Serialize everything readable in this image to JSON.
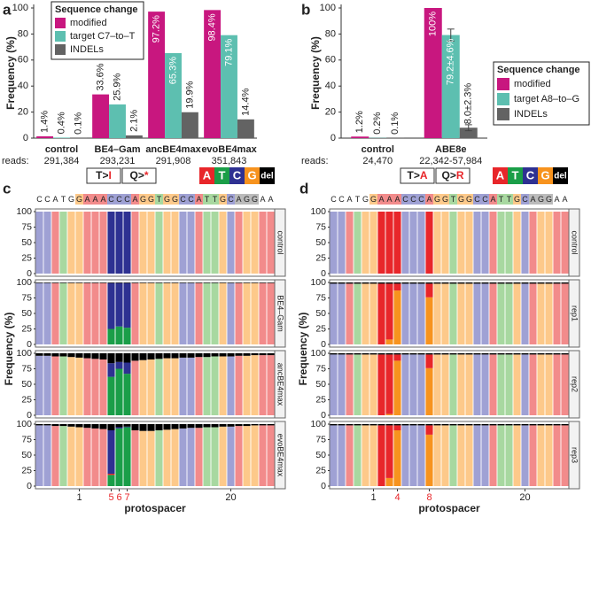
{
  "chart_data": [
    {
      "type": "bar",
      "panel": "a",
      "ylabel": "Frequency (%)",
      "categories": [
        "control",
        "BE4–Gam",
        "ancBE4max",
        "evoBE4max"
      ],
      "reads_label": "reads:",
      "reads": [
        "291,384",
        "293,231",
        "291,908",
        "351,843"
      ],
      "legend_title": "Sequence change",
      "series": [
        {
          "name": "modified",
          "color": "#c8177f",
          "values": [
            1.4,
            33.6,
            97.2,
            98.4
          ],
          "value_labels": [
            "1.4%",
            "33.6%",
            "97.2%",
            "98.4%"
          ]
        },
        {
          "name": "target C7–to–T",
          "color": "#5dbfb0",
          "values": [
            0.4,
            25.9,
            65.3,
            79.1
          ],
          "value_labels": [
            "0.4%",
            "25.9%",
            "65.3%",
            "79.1%"
          ]
        },
        {
          "name": "INDELs",
          "color": "#636363",
          "values": [
            0.1,
            2.1,
            19.9,
            14.4
          ],
          "value_labels": [
            "0.1%",
            "2.1%",
            "19.9%",
            "14.4%"
          ]
        }
      ],
      "ylim": [
        0,
        100
      ],
      "yticks": [
        0,
        20,
        40,
        60,
        80,
        100
      ]
    },
    {
      "type": "bar",
      "panel": "b",
      "ylabel": "Frequency (%)",
      "categories": [
        "control",
        "ABE8e"
      ],
      "reads_label": "reads:",
      "reads": [
        "24,470",
        "22,342-57,984"
      ],
      "legend_title": "Sequence change",
      "series": [
        {
          "name": "modified",
          "color": "#c8177f",
          "values": [
            1.2,
            100
          ],
          "value_labels": [
            "1.2%",
            "100%"
          ]
        },
        {
          "name": "target A8–to–G",
          "color": "#5dbfb0",
          "values": [
            0.2,
            79.2
          ],
          "errors": [
            null,
            4.6
          ],
          "value_labels": [
            "0.2%",
            "79.2±4.6%"
          ]
        },
        {
          "name": "INDELs",
          "color": "#636363",
          "values": [
            0.1,
            8.0
          ],
          "errors": [
            null,
            2.3
          ],
          "value_labels": [
            "0.1%",
            "8.0±2.3%"
          ]
        }
      ],
      "ylim": [
        0,
        100
      ],
      "yticks": [
        0,
        20,
        40,
        60,
        80,
        100
      ]
    },
    {
      "type": "stacked_bar",
      "panel": "c",
      "ylabel": "Frequency (%)",
      "xlabel": "protospacer",
      "annotations": [
        {
          "from": "T>",
          "to": "I"
        },
        {
          "from": "Q>",
          "to": "*"
        }
      ],
      "legend": [
        {
          "name": "A",
          "color": "#e8262a"
        },
        {
          "name": "T",
          "color": "#1a9e48"
        },
        {
          "name": "C",
          "color": "#2e3192"
        },
        {
          "name": "G",
          "color": "#f7931e"
        },
        {
          "name": "del",
          "color": "#000000"
        }
      ],
      "light_colors": {
        "A": "#f28b8b",
        "T": "#a8d8a0",
        "C": "#9fa1d4",
        "G": "#fdc98a"
      },
      "sequence": [
        "C",
        "C",
        "A",
        "T",
        "G",
        "G",
        "A",
        "A",
        "A",
        "C",
        "C",
        "C",
        "A",
        "G",
        "G",
        "T",
        "G",
        "G",
        "C",
        "C",
        "A",
        "T",
        "T",
        "G",
        "C",
        "A",
        "G",
        "G",
        "A",
        "A"
      ],
      "xlim": [
        -4.5,
        25.5
      ],
      "xticks": [
        1,
        5,
        6,
        7,
        20
      ],
      "highlight": [
        5,
        6,
        7
      ],
      "ylim": [
        0,
        100
      ],
      "yticks": [
        0,
        25,
        50,
        75,
        100
      ],
      "rows": [
        {
          "label": "control",
          "ref": [
            100,
            100,
            100,
            100,
            100,
            100,
            100,
            100,
            100,
            100,
            100,
            100,
            100,
            100,
            100,
            100,
            100,
            100,
            100,
            100,
            100,
            100,
            100,
            100,
            100,
            100,
            100,
            100,
            100,
            100
          ],
          "del": [
            0,
            0,
            0,
            0,
            0,
            0,
            0,
            0,
            0,
            0,
            0,
            0,
            0,
            0,
            0,
            0,
            0,
            0,
            0,
            0,
            0,
            0,
            0,
            0,
            0,
            0,
            0,
            0,
            0,
            0
          ],
          "edits": []
        },
        {
          "label": "BE4–Gam",
          "ref": [
            99,
            99,
            99,
            99,
            99,
            99,
            99,
            99,
            99,
            74,
            70,
            72,
            99,
            99,
            99,
            99,
            99,
            99,
            99,
            99,
            99,
            99,
            99,
            99,
            99,
            99,
            99,
            99,
            99,
            99
          ],
          "del": [
            1,
            1,
            1,
            1,
            1,
            1,
            1,
            1,
            1,
            1,
            1,
            1,
            1,
            1,
            1,
            1,
            1,
            1,
            1,
            1,
            1,
            1,
            1,
            1,
            1,
            1,
            1,
            1,
            1,
            1
          ],
          "edits": [
            {
              "position": 5,
              "base": "T",
              "value": 25
            },
            {
              "position": 6,
              "base": "T",
              "value": 29
            },
            {
              "position": 7,
              "base": "T",
              "value": 27
            }
          ]
        },
        {
          "label": "ancBE4max",
          "ref": [
            96,
            96,
            95,
            95,
            94,
            93,
            92,
            91,
            90,
            22,
            11,
            18,
            88,
            89,
            90,
            91,
            92,
            92,
            93,
            93,
            94,
            94,
            95,
            95,
            95,
            96,
            96,
            97,
            97,
            97
          ],
          "del": [
            4,
            4,
            5,
            5,
            6,
            7,
            8,
            9,
            10,
            16,
            14,
            15,
            12,
            11,
            10,
            9,
            8,
            8,
            7,
            7,
            6,
            6,
            5,
            5,
            5,
            4,
            4,
            3,
            3,
            3
          ],
          "edits": [
            {
              "position": 5,
              "base": "T",
              "value": 62
            },
            {
              "position": 6,
              "base": "T",
              "value": 75
            },
            {
              "position": 7,
              "base": "T",
              "value": 67
            }
          ]
        },
        {
          "label": "evoBE4max",
          "ref": [
            98,
            98,
            97,
            97,
            96,
            95,
            94,
            93,
            92,
            70,
            2,
            1,
            90,
            89,
            89,
            90,
            91,
            92,
            93,
            94,
            94,
            95,
            95,
            96,
            96,
            97,
            97,
            98,
            98,
            98
          ],
          "del": [
            2,
            2,
            3,
            3,
            4,
            5,
            6,
            7,
            8,
            10,
            5,
            4,
            10,
            11,
            11,
            10,
            9,
            8,
            7,
            6,
            6,
            5,
            5,
            4,
            4,
            3,
            3,
            2,
            2,
            2
          ],
          "edits": [
            {
              "position": 5,
              "base": "T",
              "value": 18
            },
            {
              "position": 5,
              "base": "A",
              "value": 2
            },
            {
              "position": 6,
              "base": "T",
              "value": 93
            },
            {
              "position": 7,
              "base": "T",
              "value": 95
            }
          ]
        }
      ]
    },
    {
      "type": "stacked_bar",
      "panel": "d",
      "ylabel": "Frequency (%)",
      "xlabel": "protospacer",
      "annotations": [
        {
          "from": "T>",
          "to": "A"
        },
        {
          "from": "Q>",
          "to": "R"
        }
      ],
      "legend": [
        {
          "name": "A",
          "color": "#e8262a"
        },
        {
          "name": "T",
          "color": "#1a9e48"
        },
        {
          "name": "C",
          "color": "#2e3192"
        },
        {
          "name": "G",
          "color": "#f7931e"
        },
        {
          "name": "del",
          "color": "#000000"
        }
      ],
      "light_colors": {
        "A": "#f28b8b",
        "T": "#a8d8a0",
        "C": "#9fa1d4",
        "G": "#fdc98a"
      },
      "sequence": [
        "C",
        "C",
        "A",
        "T",
        "G",
        "G",
        "A",
        "A",
        "A",
        "C",
        "C",
        "C",
        "A",
        "G",
        "G",
        "T",
        "G",
        "G",
        "C",
        "C",
        "A",
        "T",
        "T",
        "G",
        "C",
        "A",
        "G",
        "G",
        "A",
        "A"
      ],
      "xlim": [
        -4.5,
        25.5
      ],
      "xticks": [
        1,
        4,
        8,
        20
      ],
      "highlight": [
        2,
        3,
        4,
        8
      ],
      "ylim": [
        0,
        100
      ],
      "yticks": [
        0,
        25,
        50,
        75,
        100
      ],
      "rows": [
        {
          "label": "control",
          "ref": [
            100,
            100,
            100,
            100,
            100,
            100,
            100,
            100,
            100,
            100,
            100,
            100,
            100,
            100,
            100,
            100,
            100,
            100,
            100,
            100,
            100,
            100,
            100,
            100,
            100,
            100,
            100,
            100,
            100,
            100
          ],
          "del": [
            0,
            0,
            0,
            0,
            0,
            0,
            0,
            0,
            0,
            0,
            0,
            0,
            0,
            0,
            0,
            0,
            0,
            0,
            0,
            0,
            0,
            0,
            0,
            0,
            0,
            0,
            0,
            0,
            0,
            0
          ],
          "edits": []
        },
        {
          "label": "rep1",
          "ref": [
            98,
            98,
            98,
            98,
            98,
            98,
            98,
            90,
            11,
            98,
            98,
            98,
            22,
            98,
            98,
            98,
            98,
            98,
            98,
            98,
            98,
            98,
            98,
            98,
            98,
            98,
            98,
            98,
            98,
            98
          ],
          "del": [
            2,
            2,
            2,
            2,
            2,
            2,
            2,
            2,
            2,
            2,
            2,
            2,
            2,
            2,
            2,
            2,
            2,
            2,
            2,
            2,
            2,
            2,
            2,
            2,
            2,
            2,
            2,
            2,
            2,
            2
          ],
          "edits": [
            {
              "position": 3,
              "base": "G",
              "value": 8
            },
            {
              "position": 4,
              "base": "G",
              "value": 87
            },
            {
              "position": 8,
              "base": "G",
              "value": 76
            }
          ]
        },
        {
          "label": "rep2",
          "ref": [
            98,
            98,
            98,
            98,
            98,
            98,
            98,
            96,
            10,
            98,
            98,
            98,
            22,
            98,
            98,
            98,
            98,
            98,
            98,
            98,
            98,
            98,
            98,
            98,
            98,
            98,
            98,
            98,
            98,
            98
          ],
          "del": [
            2,
            2,
            2,
            2,
            2,
            2,
            2,
            2,
            2,
            2,
            2,
            2,
            2,
            2,
            2,
            2,
            2,
            2,
            2,
            2,
            2,
            2,
            2,
            2,
            2,
            2,
            2,
            2,
            2,
            2
          ],
          "edits": [
            {
              "position": 3,
              "base": "G",
              "value": 2
            },
            {
              "position": 4,
              "base": "G",
              "value": 88
            },
            {
              "position": 8,
              "base": "G",
              "value": 76
            }
          ]
        },
        {
          "label": "rep3",
          "ref": [
            98,
            98,
            98,
            98,
            98,
            98,
            98,
            85,
            8,
            98,
            98,
            98,
            15,
            98,
            98,
            98,
            98,
            98,
            98,
            98,
            98,
            98,
            98,
            98,
            98,
            98,
            98,
            98,
            98,
            98
          ],
          "del": [
            2,
            2,
            2,
            2,
            2,
            2,
            2,
            2,
            2,
            2,
            2,
            2,
            2,
            2,
            2,
            2,
            2,
            2,
            2,
            2,
            2,
            2,
            2,
            2,
            2,
            2,
            2,
            2,
            2,
            2
          ],
          "edits": [
            {
              "position": 3,
              "base": "G",
              "value": 13
            },
            {
              "position": 4,
              "base": "G",
              "value": 90
            },
            {
              "position": 8,
              "base": "G",
              "value": 83
            }
          ]
        }
      ]
    }
  ]
}
